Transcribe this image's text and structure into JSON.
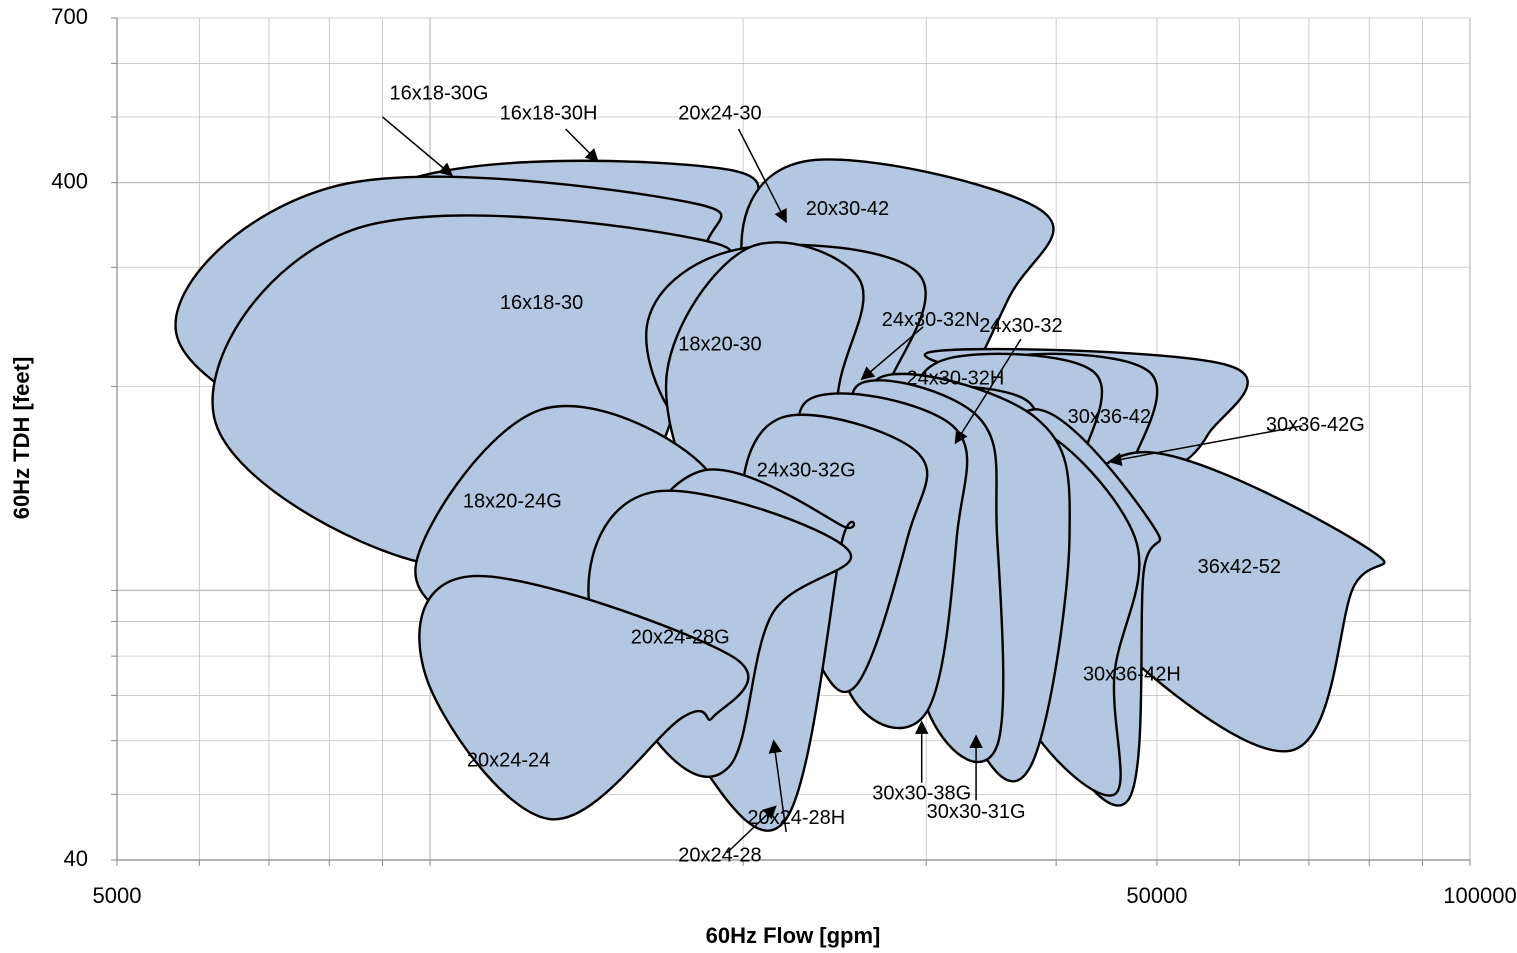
{
  "chart_data": {
    "type": "area",
    "title": "",
    "xlabel": "60Hz Flow [gpm]",
    "ylabel": "60Hz TDH [feet]",
    "x_scale": "log",
    "y_scale": "log",
    "xlim": [
      5000,
      100000
    ],
    "ylim": [
      40,
      700
    ],
    "x_tick_labels": [
      "5000",
      "50000",
      "100000"
    ],
    "y_tick_labels": [
      "700",
      "400",
      "40"
    ],
    "grid": true,
    "colors": {
      "fill": "#b4c7e0",
      "outline": "#000000",
      "grid": "#c0c0c0"
    },
    "regions": [
      {
        "name": "16x18-30H",
        "points": [
          [
            9000,
            390
          ],
          [
            19000,
            420
          ],
          [
            20000,
            330
          ],
          [
            17500,
            190
          ],
          [
            10500,
            180
          ],
          [
            7800,
            200
          ]
        ]
      },
      {
        "name": "16x18-30G",
        "points": [
          [
            8100,
            395
          ],
          [
            17600,
            375
          ],
          [
            18300,
            310
          ],
          [
            16800,
            175
          ],
          [
            9000,
            160
          ],
          [
            5700,
            240
          ]
        ]
      },
      {
        "name": "16x18-30",
        "points": [
          [
            8400,
            340
          ],
          [
            18100,
            330
          ],
          [
            18300,
            265
          ],
          [
            15200,
            130
          ],
          [
            9800,
            110
          ],
          [
            6200,
            180
          ]
        ]
      },
      {
        "name": "20x30-42",
        "points": [
          [
            22900,
            430
          ],
          [
            38600,
            365
          ],
          [
            36000,
            270
          ],
          [
            30200,
            170
          ],
          [
            25000,
            185
          ],
          [
            20000,
            300
          ]
        ]
      },
      {
        "name": "18x20-30",
        "points": [
          [
            20000,
            320
          ],
          [
            29400,
            295
          ],
          [
            27500,
            200
          ],
          [
            23900,
            145
          ],
          [
            18000,
            165
          ],
          [
            16200,
            250
          ]
        ]
      },
      {
        "name": "18x20-30b",
        "points": [
          [
            20200,
            320
          ],
          [
            25800,
            290
          ],
          [
            24800,
            205
          ],
          [
            23300,
            140
          ],
          [
            18700,
            130
          ],
          [
            16900,
            210
          ]
        ]
      },
      {
        "name": "30x36-42",
        "points": [
          [
            30300,
            225
          ],
          [
            58500,
            215
          ],
          [
            56000,
            170
          ],
          [
            51200,
            150
          ],
          [
            45000,
            145
          ],
          [
            39000,
            190
          ]
        ]
      },
      {
        "name": "30x36-42G",
        "points": [
          [
            35500,
            220
          ],
          [
            49200,
            210
          ],
          [
            47000,
            150
          ],
          [
            44700,
            130
          ],
          [
            39500,
            135
          ],
          [
            33600,
            180
          ]
        ]
      },
      {
        "name": "24x30-32H",
        "points": [
          [
            31500,
            220
          ],
          [
            43500,
            210
          ],
          [
            42000,
            150
          ],
          [
            41300,
            130
          ],
          [
            36900,
            135
          ],
          [
            29700,
            180
          ]
        ]
      },
      {
        "name": "24x30-32N",
        "points": [
          [
            27200,
            200
          ],
          [
            37600,
            190
          ],
          [
            36300,
            140
          ],
          [
            32500,
            135
          ],
          [
            29000,
            150
          ],
          [
            26100,
            180
          ]
        ]
      },
      {
        "name": "36x42-52",
        "points": [
          [
            49000,
            160
          ],
          [
            80000,
            115
          ],
          [
            77000,
            100
          ],
          [
            67200,
            58
          ],
          [
            45000,
            85
          ],
          [
            41000,
            120
          ]
        ]
      },
      {
        "name": "30x36-42H",
        "points": [
          [
            38000,
            185
          ],
          [
            49500,
            125
          ],
          [
            48500,
            105
          ],
          [
            46900,
            49
          ],
          [
            38400,
            66
          ],
          [
            33000,
            115
          ]
        ]
      },
      {
        "name": "30x36-42H_back",
        "points": [
          [
            37000,
            175
          ],
          [
            47600,
            120
          ],
          [
            45500,
            75
          ],
          [
            45500,
            50
          ],
          [
            37500,
            64
          ],
          [
            33000,
            110
          ]
        ]
      },
      {
        "name": "24x30-32",
        "points": [
          [
            26900,
            205
          ],
          [
            38200,
            180
          ],
          [
            41200,
            120
          ],
          [
            37800,
            55
          ],
          [
            32900,
            63
          ],
          [
            28500,
            130
          ]
        ]
      },
      {
        "name": "30x30-31G",
        "points": [
          [
            25700,
            200
          ],
          [
            33700,
            180
          ],
          [
            35100,
            120
          ],
          [
            35100,
            59
          ],
          [
            30300,
            65
          ],
          [
            27500,
            130
          ]
        ]
      },
      {
        "name": "30x30-38G",
        "points": [
          [
            23000,
            190
          ],
          [
            31800,
            175
          ],
          [
            32100,
            120
          ],
          [
            30000,
            66
          ],
          [
            25400,
            70
          ],
          [
            24000,
            120
          ]
        ]
      },
      {
        "name": "24x30-32G",
        "points": [
          [
            21800,
            180
          ],
          [
            29400,
            160
          ],
          [
            28800,
            120
          ],
          [
            25600,
            72
          ],
          [
            22900,
            85
          ],
          [
            20000,
            130
          ]
        ]
      },
      {
        "name": "20x24-28H",
        "points": [
          [
            18100,
            145
          ],
          [
            23000,
            120
          ],
          [
            23300,
            115
          ],
          [
            21400,
            62
          ],
          [
            19300,
            65
          ],
          [
            16700,
            110
          ]
        ]
      },
      {
        "name": "18x20-24G",
        "points": [
          [
            12800,
            185
          ],
          [
            18500,
            150
          ],
          [
            17800,
            100
          ],
          [
            14600,
            80
          ],
          [
            11500,
            85
          ],
          [
            9700,
            110
          ]
        ]
      },
      {
        "name": "20x24-28",
        "points": [
          [
            18200,
            150
          ],
          [
            24800,
            125
          ],
          [
            24800,
            115
          ],
          [
            22000,
            46
          ],
          [
            18000,
            57
          ],
          [
            15500,
            100
          ]
        ]
      },
      {
        "name": "20x24-28G",
        "points": [
          [
            16500,
            140
          ],
          [
            25200,
            115
          ],
          [
            21300,
            92
          ],
          [
            19400,
            55
          ],
          [
            16500,
            60
          ],
          [
            14200,
            100
          ]
        ]
      },
      {
        "name": "20x24-24",
        "points": [
          [
            11000,
            105
          ],
          [
            19500,
            80
          ],
          [
            18700,
            65
          ],
          [
            17500,
            65
          ],
          [
            13000,
            46
          ],
          [
            9900,
            75
          ]
        ]
      }
    ],
    "annotations": [
      {
        "text": "16x18-30G",
        "x": 10200,
        "y": 540
      },
      {
        "text": "16x18-30H",
        "x": 13000,
        "y": 505
      },
      {
        "text": "20x24-30",
        "x": 19000,
        "y": 505
      },
      {
        "text": "20x30-42",
        "x": 25200,
        "y": 365
      },
      {
        "text": "16x18-30",
        "x": 12800,
        "y": 265
      },
      {
        "text": "18x20-30",
        "x": 19000,
        "y": 230
      },
      {
        "text": "24x30-32N",
        "x": 30300,
        "y": 250
      },
      {
        "text": "24x30-32",
        "x": 37000,
        "y": 245
      },
      {
        "text": "24x30-32H",
        "x": 32000,
        "y": 205
      },
      {
        "text": "30x36-42",
        "x": 45000,
        "y": 180
      },
      {
        "text": "30x36-42G",
        "x": 71000,
        "y": 175
      },
      {
        "text": "24x30-32G",
        "x": 23000,
        "y": 150
      },
      {
        "text": "18x20-24G",
        "x": 12000,
        "y": 135
      },
      {
        "text": "36x42-52",
        "x": 60000,
        "y": 108
      },
      {
        "text": "20x24-28G",
        "x": 17400,
        "y": 85
      },
      {
        "text": "30x36-42H",
        "x": 47300,
        "y": 75
      },
      {
        "text": "20x24-24",
        "x": 11900,
        "y": 56
      },
      {
        "text": "30x30-38G",
        "x": 29700,
        "y": 50
      },
      {
        "text": "30x30-31G",
        "x": 33500,
        "y": 47
      },
      {
        "text": "20x24-28H",
        "x": 22500,
        "y": 46
      },
      {
        "text": "20x24-28",
        "x": 19000,
        "y": 40.5
      }
    ],
    "arrows": [
      {
        "from": [
          9000,
          500
        ],
        "to": [
          10500,
          410
        ]
      },
      {
        "from": [
          13500,
          480
        ],
        "to": [
          14500,
          430
        ]
      },
      {
        "from": [
          19800,
          480
        ],
        "to": [
          22000,
          350
        ]
      },
      {
        "from": [
          29800,
          245
        ],
        "to": [
          26000,
          205
        ]
      },
      {
        "from": [
          37000,
          235
        ],
        "to": [
          32000,
          165
        ]
      },
      {
        "from": [
          69000,
          175
        ],
        "to": [
          45000,
          155
        ]
      },
      {
        "from": [
          22000,
          44
        ],
        "to": [
          21400,
          60
        ]
      },
      {
        "from": [
          29700,
          52
        ],
        "to": [
          29700,
          64
        ]
      },
      {
        "from": [
          33500,
          49
        ],
        "to": [
          33500,
          61
        ]
      },
      {
        "from": [
          19300,
          41
        ],
        "to": [
          21500,
          48
        ]
      }
    ]
  }
}
